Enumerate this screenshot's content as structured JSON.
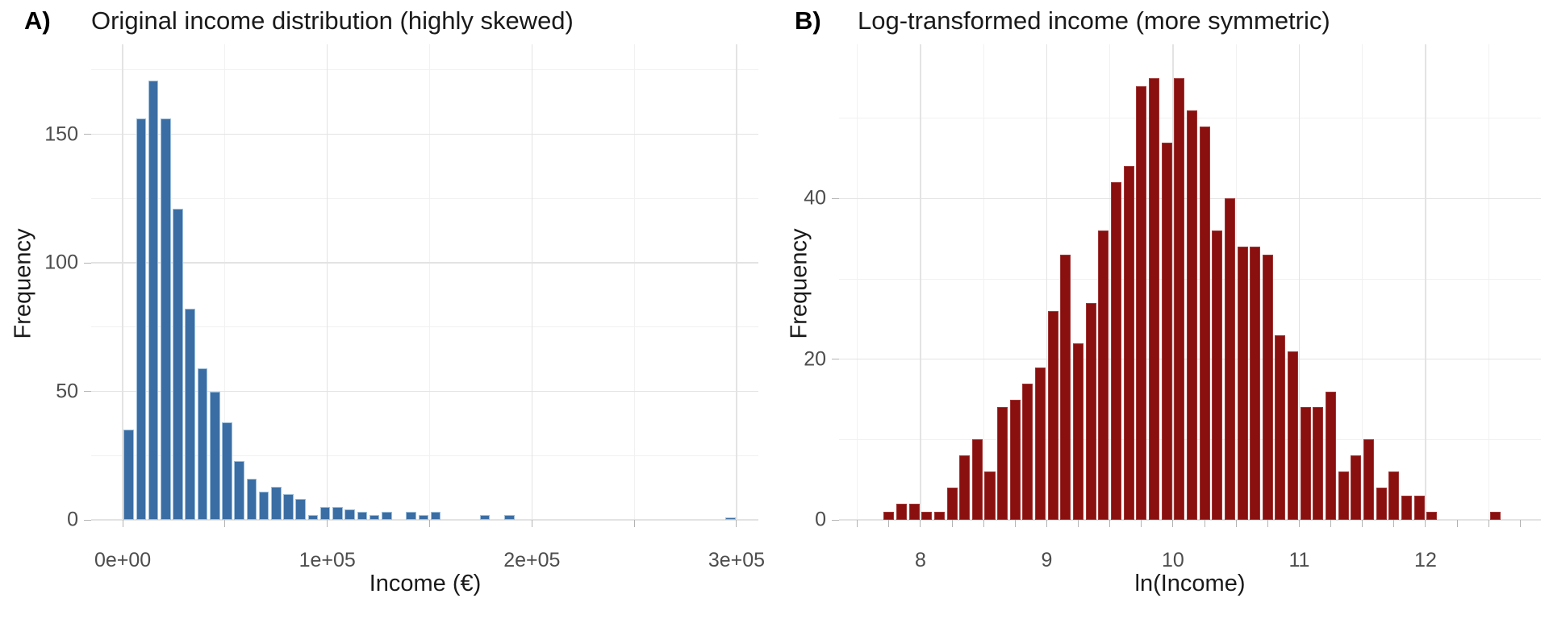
{
  "figure": {
    "kind": "two-panel histogram figure"
  },
  "chart_data": [
    {
      "type": "bar",
      "panel_tag": "A)",
      "title": "Original income distribution (highly skewed)",
      "xlabel": "Income (€)",
      "ylabel": "Frequency",
      "bar_color": "#3a6da3",
      "bar_border_color": "#9dbfdd",
      "bin_start": 0,
      "bin_width": 6000,
      "counts": [
        35,
        156,
        171,
        156,
        121,
        82,
        59,
        50,
        38,
        23,
        16,
        11,
        13,
        10,
        8,
        2,
        5,
        5,
        4,
        3,
        2,
        3,
        0,
        3,
        2,
        3,
        0,
        0,
        0,
        2,
        0,
        2,
        0,
        0,
        0,
        0,
        0,
        0,
        0,
        0,
        0,
        0,
        0,
        0,
        0,
        0,
        0,
        0,
        0,
        1
      ],
      "x_ticks": [
        {
          "v": 0,
          "label": "0e+00"
        },
        {
          "v": 100000,
          "label": "1e+05"
        },
        {
          "v": 200000,
          "label": "2e+05"
        },
        {
          "v": 300000,
          "label": "3e+05"
        }
      ],
      "y_ticks": [
        {
          "v": 0,
          "label": "0"
        },
        {
          "v": 50,
          "label": "50"
        },
        {
          "v": 100,
          "label": "100"
        },
        {
          "v": 150,
          "label": "150"
        }
      ],
      "x_grid_major": [
        0,
        100000,
        200000,
        300000
      ],
      "x_grid_minor": [
        50000,
        150000,
        250000
      ],
      "y_grid_major": [
        0,
        50,
        100,
        150
      ],
      "y_grid_minor": [
        25,
        75,
        125,
        175
      ],
      "x_axis_ticks": [
        0,
        50000,
        100000,
        150000,
        200000,
        250000,
        300000
      ],
      "xlim": [
        -15414,
        310673
      ],
      "ylim": [
        0,
        185
      ],
      "grid": true,
      "legend": "none"
    },
    {
      "type": "bar",
      "panel_tag": "B)",
      "title": "Log-transformed income (more symmetric)",
      "xlabel": "ln(Income)",
      "ylabel": "Frequency",
      "bar_color": "#8a0f0f",
      "bar_border_color": "#a03535",
      "bin_start": 7.7,
      "bin_width": 0.1,
      "counts": [
        1,
        2,
        2,
        1,
        1,
        4,
        8,
        10,
        6,
        14,
        15,
        17,
        19,
        26,
        33,
        22,
        27,
        36,
        42,
        44,
        54,
        55,
        47,
        55,
        51,
        49,
        36,
        40,
        34,
        34,
        33,
        23,
        21,
        14,
        14,
        16,
        6,
        8,
        10,
        4,
        6,
        3,
        3,
        1,
        0,
        0,
        0,
        0,
        1
      ],
      "x_ticks": [
        {
          "v": 8,
          "label": "8"
        },
        {
          "v": 9,
          "label": "9"
        },
        {
          "v": 10,
          "label": "10"
        },
        {
          "v": 11,
          "label": "11"
        },
        {
          "v": 12,
          "label": "12"
        }
      ],
      "y_ticks": [
        {
          "v": 0,
          "label": "0"
        },
        {
          "v": 20,
          "label": "20"
        },
        {
          "v": 40,
          "label": "40"
        }
      ],
      "x_grid_major": [
        8,
        9,
        10,
        11,
        12
      ],
      "x_grid_minor": [
        7.5,
        8.5,
        9.5,
        10.5,
        11.5,
        12.5
      ],
      "y_grid_major": [
        0,
        20,
        40
      ],
      "y_grid_minor": [
        10,
        30,
        50
      ],
      "x_axis_ticks": [
        7.5,
        7.75,
        8,
        8.25,
        8.5,
        8.75,
        9,
        9.25,
        9.5,
        9.75,
        10,
        10.25,
        10.5,
        10.75,
        11,
        11.25,
        11.5,
        11.75,
        12,
        12.25,
        12.5,
        12.75
      ],
      "xlim": [
        7.355,
        12.914
      ],
      "ylim": [
        0,
        59.2
      ],
      "grid": true,
      "legend": "none"
    }
  ]
}
